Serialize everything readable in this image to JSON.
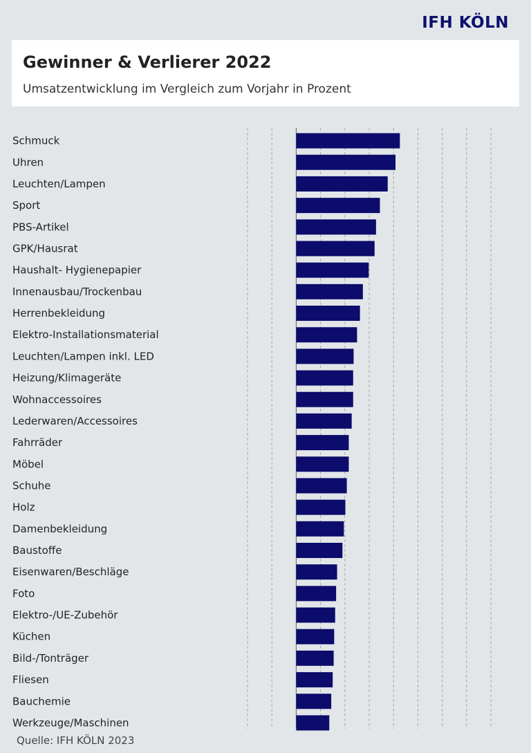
{
  "brand": "IFH KÖLN",
  "header": {
    "title": "Gewinner & Verlierer 2022",
    "subtitle": "Umsatzentwicklung im Vergleich zum Vorjahr in Prozent"
  },
  "source": "Quelle: IFH KÖLN 2023",
  "colors": {
    "bar": "#0b0c6b",
    "grid": "#a8a8a8",
    "background": "#e3e6e9"
  },
  "chart_data": {
    "type": "bar",
    "orientation": "horizontal",
    "title": "Gewinner & Verlierer 2022",
    "subtitle": "Umsatzentwicklung im Vergleich zum Vorjahr in Prozent",
    "xlim": [
      -10,
      40
    ],
    "grid": true,
    "categories": [
      "Schmuck",
      "Uhren",
      "Leuchten/Lampen",
      "Sport",
      "PBS-Artikel",
      "GPK/Hausrat",
      "Haushalt- Hygienepapier",
      "Innenausbau/Trockenbau",
      "Herrenbekleidung",
      "Elektro-Installationsmaterial",
      "Leuchten/Lampen inkl. LED",
      "Heizung/Klimageräte",
      "Wohnaccessoires",
      "Lederwaren/Accessoires",
      "Fahrräder",
      "Möbel",
      "Schuhe",
      "Holz",
      "Damenbekleidung",
      "Baustoffe",
      "Eisenwaren/Beschläge",
      "Foto",
      "Elektro-/UE-Zubehör",
      "Küchen",
      "Bild-/Tonträger",
      "Fliesen",
      "Bauchemie",
      "Werkzeuge/Maschinen"
    ],
    "values": [
      21.3,
      20.4,
      18.8,
      17.2,
      16.4,
      16.1,
      14.9,
      13.7,
      13.1,
      12.5,
      11.8,
      11.7,
      11.7,
      11.4,
      10.8,
      10.8,
      10.4,
      10.1,
      9.8,
      9.5,
      8.4,
      8.2,
      8.0,
      7.8,
      7.7,
      7.5,
      7.2,
      6.8
    ]
  }
}
